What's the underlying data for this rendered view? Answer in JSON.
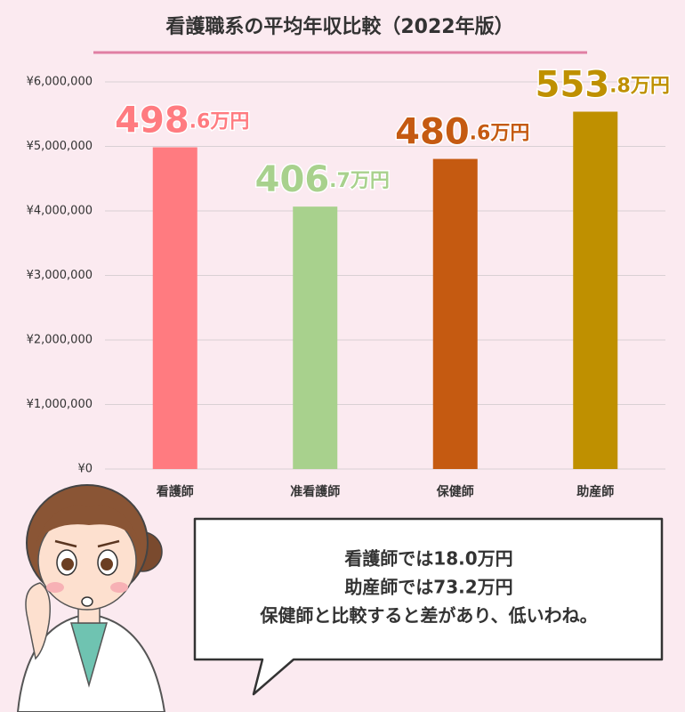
{
  "chart_data": {
    "type": "bar",
    "title": "看護職系の平均年収比較（2022年版）",
    "categories": [
      "看護師",
      "准看護師",
      "保健師",
      "助産師"
    ],
    "series": [
      {
        "values": [
          4986000,
          4067000,
          4806000,
          5538000
        ],
        "value_labels": [
          "498.6万円",
          "406.7万円",
          "480.6万円",
          "553.8万円"
        ],
        "colors": [
          "#ff7b80",
          "#a8d18d",
          "#c55a11",
          "#bf9000"
        ]
      }
    ],
    "ylim": [
      0,
      6000000
    ],
    "yticks": [
      {
        "value": 0,
        "label": "¥0"
      },
      {
        "value": 1000000,
        "label": "¥1,000,000"
      },
      {
        "value": 2000000,
        "label": "¥2,000,000"
      },
      {
        "value": 3000000,
        "label": "¥3,000,000"
      },
      {
        "value": 4000000,
        "label": "¥4,000,000"
      },
      {
        "value": 5000000,
        "label": "¥5,000,000"
      },
      {
        "value": 6000000,
        "label": "¥6,000,000"
      }
    ],
    "grid": true
  },
  "speech_bubble": {
    "lines": [
      "看護師では18.0万円",
      "助産師では73.2万円",
      "保健師と比較すると差があり、低いわね。"
    ]
  }
}
